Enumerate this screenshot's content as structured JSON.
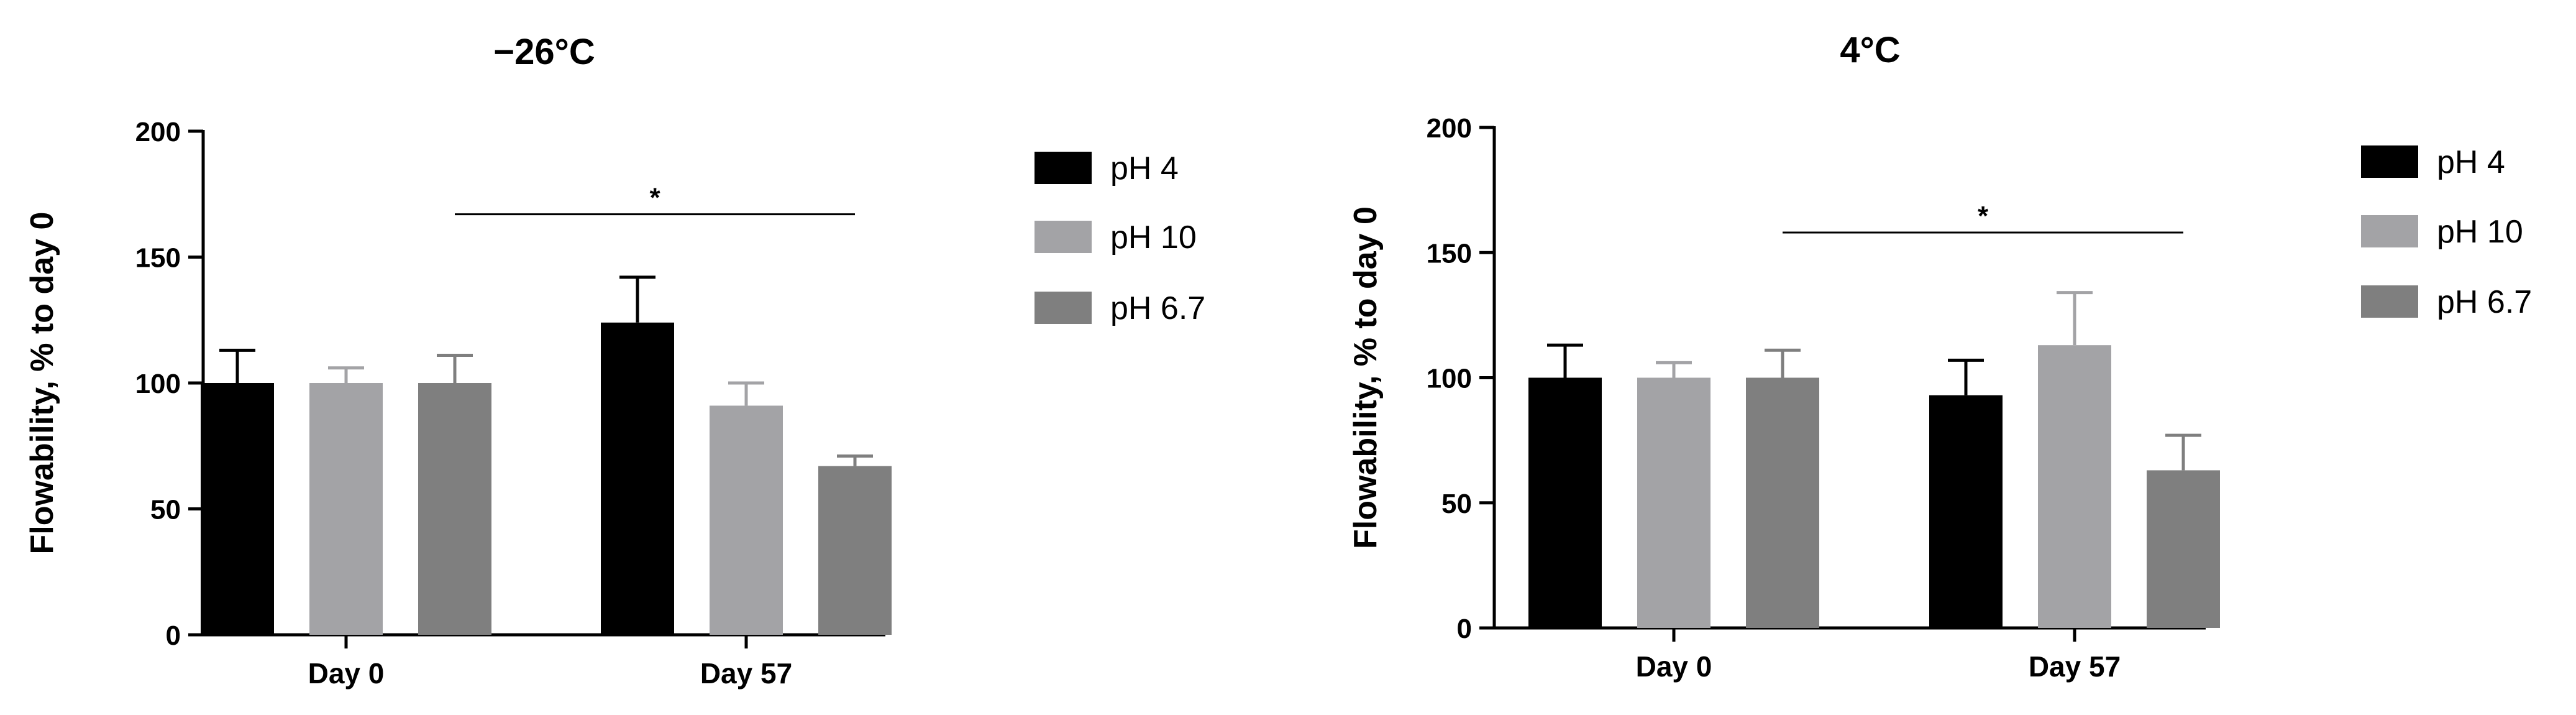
{
  "chart_data": [
    {
      "type": "bar",
      "title": "−26°C",
      "ylabel": "Flowability, % to day 0",
      "xlabel": "",
      "ylim": [
        0,
        200
      ],
      "yticks": [
        "0",
        "50",
        "100",
        "150",
        "200"
      ],
      "categories": [
        "Day 0",
        "Day 57"
      ],
      "series": [
        {
          "name": "pH 4",
          "values": [
            100,
            124
          ],
          "errors": [
            13,
            18
          ],
          "color": "#000000"
        },
        {
          "name": "pH 10",
          "values": [
            100,
            91
          ],
          "errors": [
            6,
            9
          ],
          "color": "#a3a3a6"
        },
        {
          "name": "pH 6.7",
          "values": [
            100,
            67
          ],
          "errors": [
            11,
            4
          ],
          "color": "#7f7f7f"
        }
      ],
      "significance": {
        "label": "*",
        "level": 167
      },
      "legend_position": "right"
    },
    {
      "type": "bar",
      "title": "4°C",
      "ylabel": "Flowability, % to day 0",
      "xlabel": "",
      "ylim": [
        0,
        200
      ],
      "yticks": [
        "0",
        "50",
        "100",
        "150",
        "200"
      ],
      "categories": [
        "Day 0",
        "Day 57"
      ],
      "series": [
        {
          "name": "pH 4",
          "values": [
            100,
            93
          ],
          "errors": [
            13,
            14
          ],
          "color": "#000000"
        },
        {
          "name": "pH 10",
          "values": [
            100,
            113
          ],
          "errors": [
            6,
            21
          ],
          "color": "#a3a3a6"
        },
        {
          "name": "pH 6.7",
          "values": [
            100,
            63
          ],
          "errors": [
            11,
            14
          ],
          "color": "#7f7f7f"
        }
      ],
      "significance": {
        "label": "*",
        "level": 158
      },
      "legend_position": "right"
    }
  ]
}
